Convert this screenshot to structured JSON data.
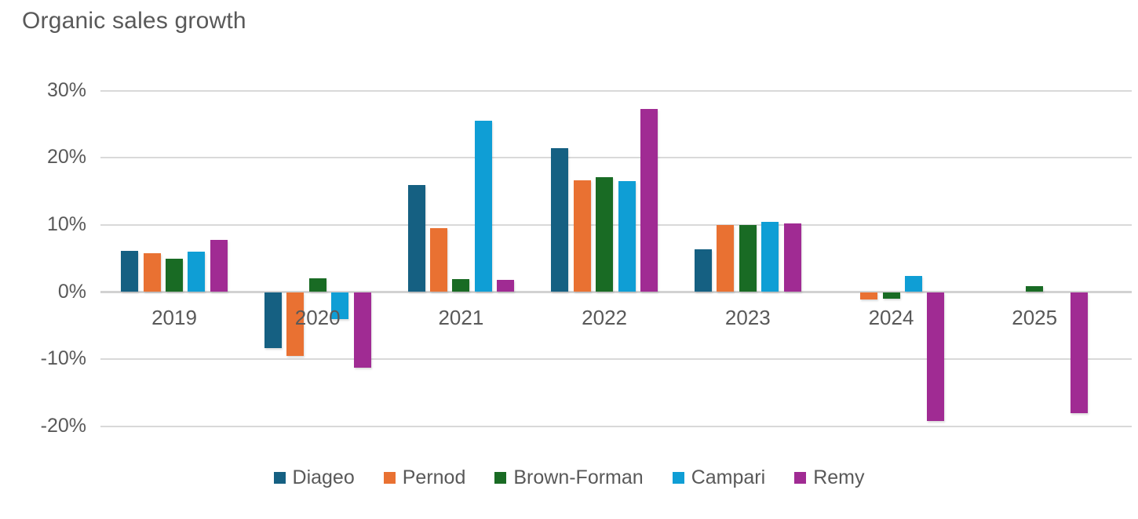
{
  "title": "Organic sales growth",
  "text_color": "#595959",
  "gridline_color": "#d9d9d9",
  "chart_data": {
    "type": "bar",
    "title": "Organic sales growth",
    "categories": [
      "2019",
      "2020",
      "2021",
      "2022",
      "2023",
      "2024",
      "2025"
    ],
    "series": [
      {
        "name": "Diageo",
        "color": "#156082",
        "values": [
          6.1,
          -8.4,
          15.9,
          21.4,
          6.4,
          null,
          null
        ]
      },
      {
        "name": "Pernod",
        "color": "#E97132",
        "values": [
          5.8,
          -9.5,
          9.5,
          16.7,
          10.0,
          -1.1,
          null
        ]
      },
      {
        "name": "Brown-Forman",
        "color": "#196B24",
        "values": [
          5.0,
          2.0,
          1.9,
          17.1,
          10.0,
          -1.0,
          0.9
        ]
      },
      {
        "name": "Campari",
        "color": "#0F9ED5",
        "values": [
          6.0,
          -4.0,
          25.5,
          16.5,
          10.5,
          2.4,
          null
        ]
      },
      {
        "name": "Remy",
        "color": "#A02B93",
        "values": [
          7.8,
          -11.3,
          1.8,
          27.3,
          10.2,
          -19.2,
          -18.1
        ]
      }
    ],
    "y_ticks": [
      30,
      20,
      10,
      0,
      -10,
      -20
    ],
    "y_tick_labels": [
      "30%",
      "20%",
      "10%",
      "0%",
      "-10%",
      "-20%"
    ],
    "y_unit": "percent",
    "ylim": [
      -25,
      32
    ],
    "grid": true,
    "legend_position": "bottom"
  }
}
